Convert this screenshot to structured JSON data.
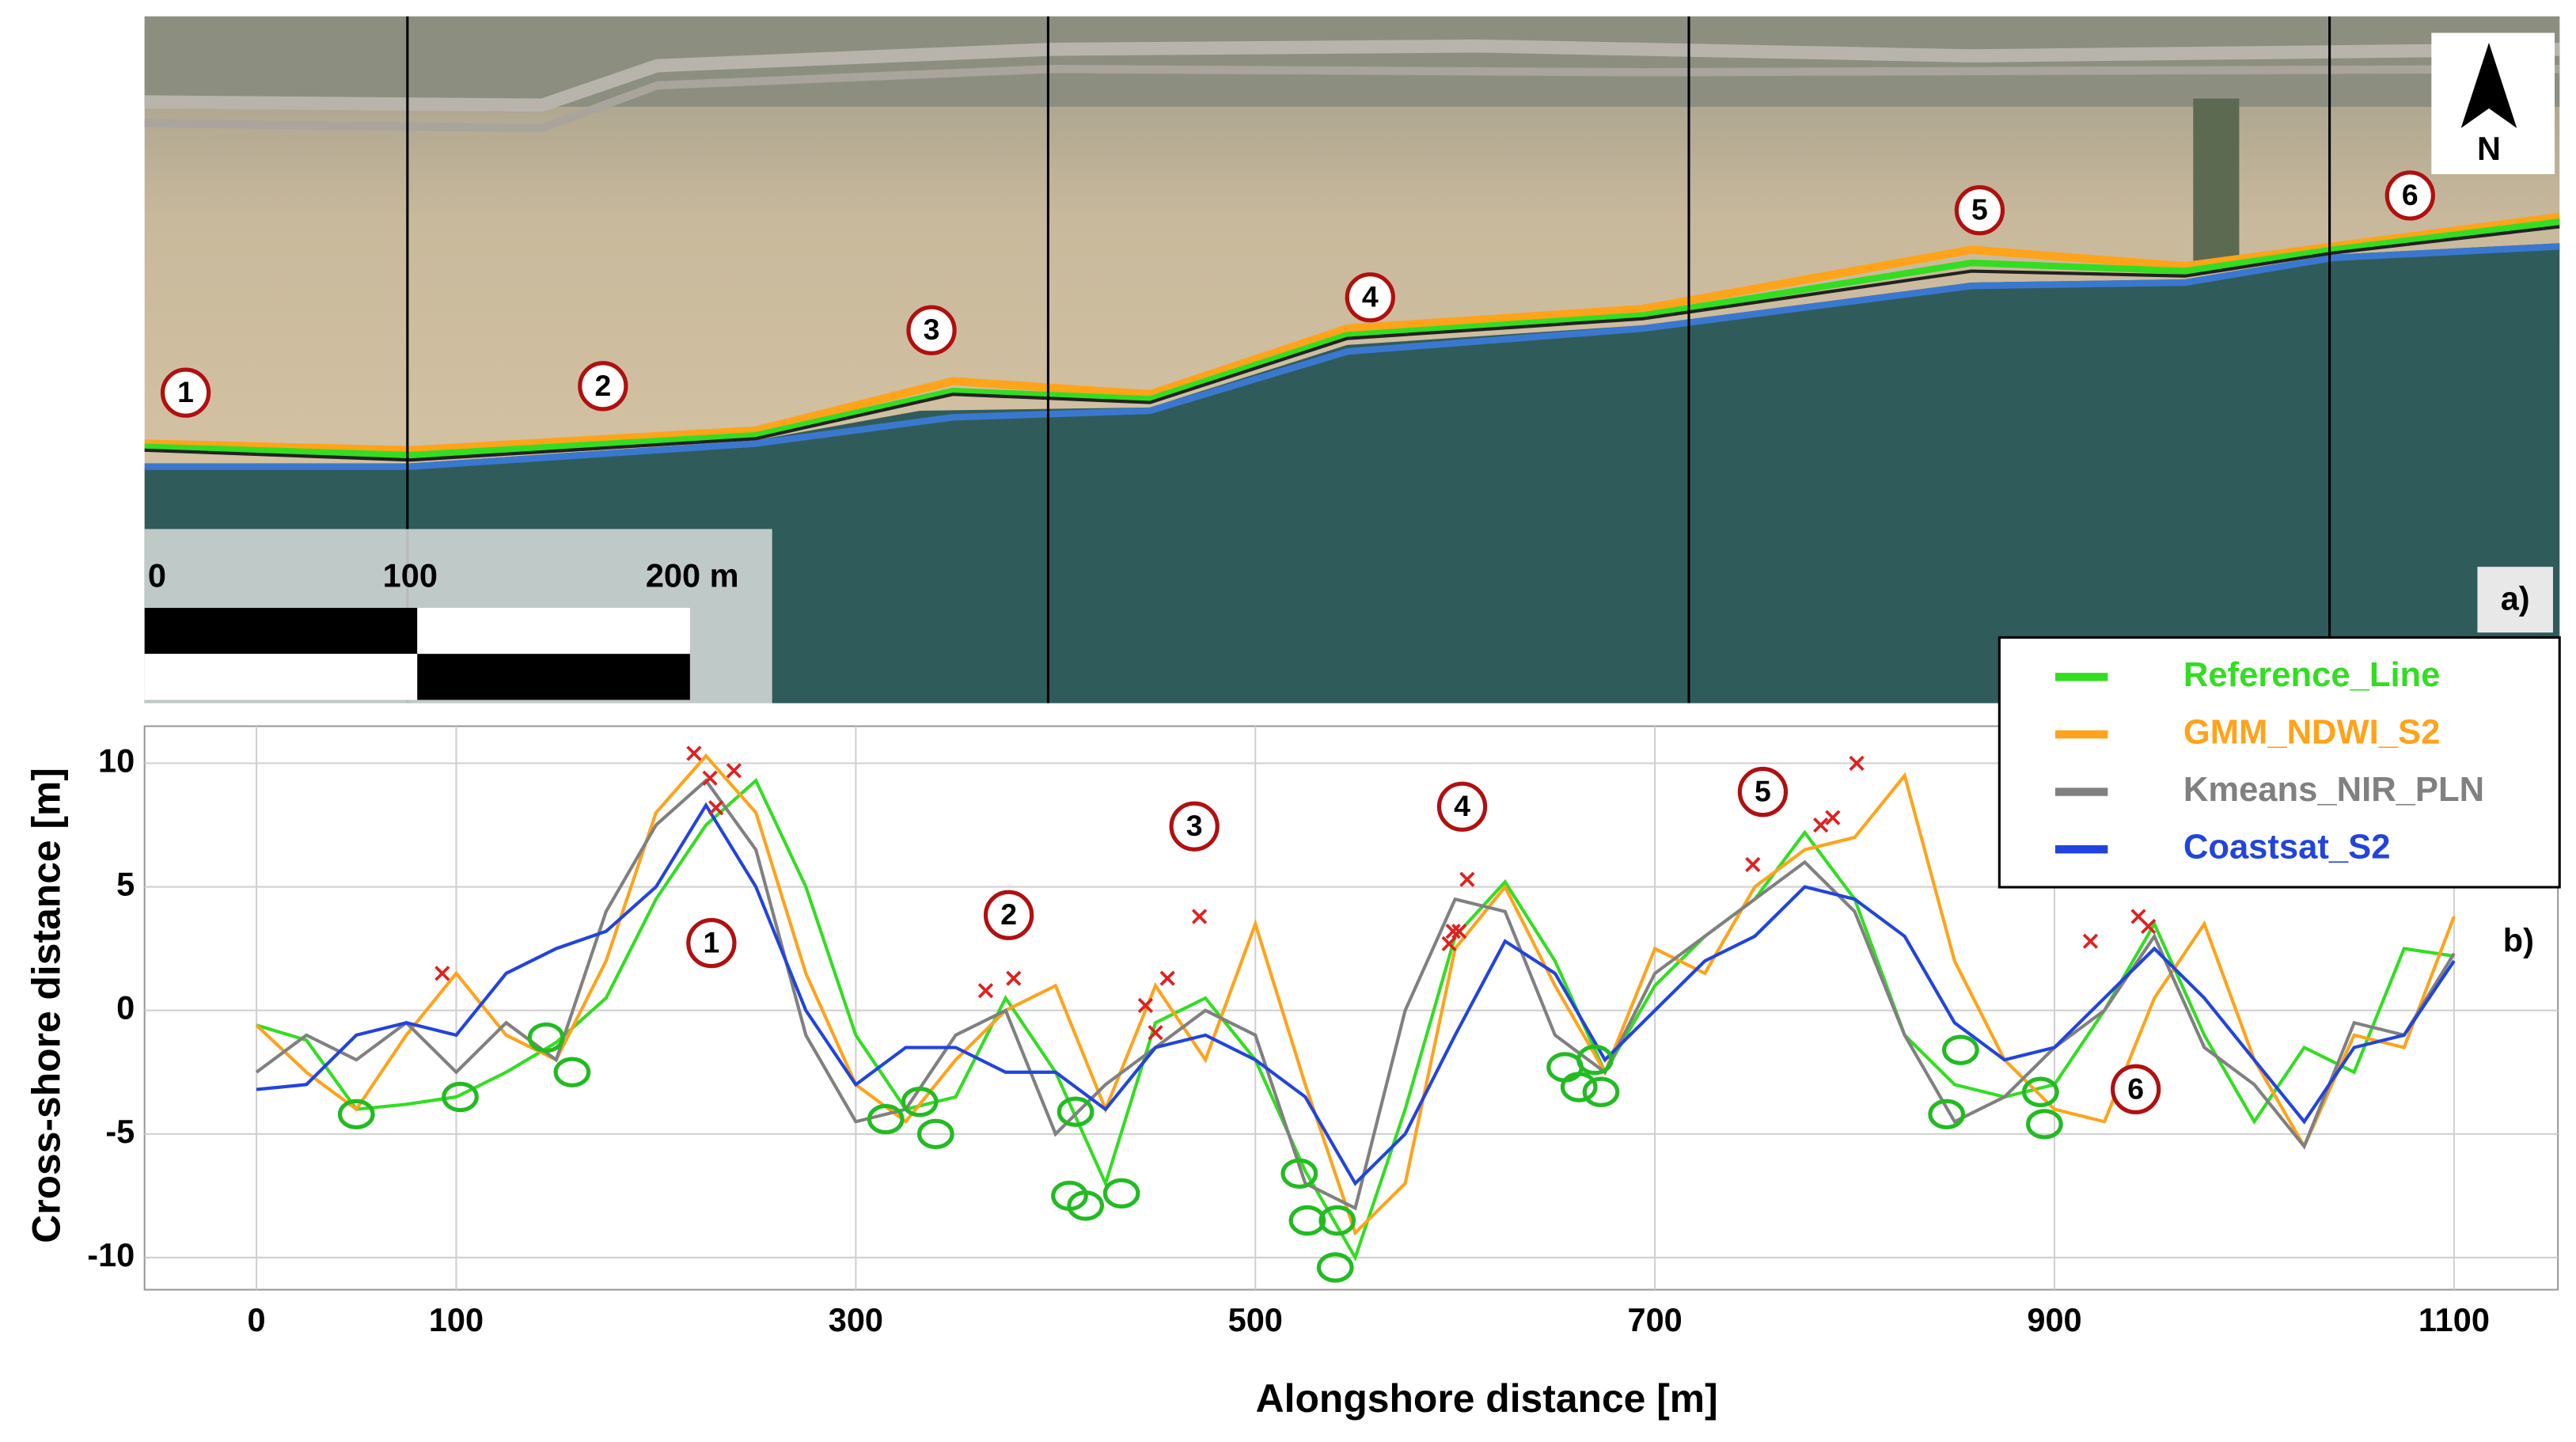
{
  "photo": {
    "labels": [
      "1",
      "2",
      "3",
      "4",
      "5",
      "6"
    ],
    "scale_labels": [
      "0",
      "100",
      "200 m"
    ],
    "north": "N",
    "panel": "a)"
  },
  "chart_data": {
    "type": "line",
    "panel": "b)",
    "x_label": "Alongshore distance [m]",
    "y_label": "Cross-shore distance [m]",
    "x": [
      0,
      25,
      50,
      75,
      100,
      125,
      150,
      175,
      200,
      225,
      250,
      275,
      300,
      325,
      350,
      375,
      400,
      425,
      450,
      475,
      500,
      525,
      550,
      575,
      600,
      625,
      650,
      675,
      700,
      725,
      750,
      775,
      800,
      825,
      850,
      875,
      900,
      925,
      950,
      975,
      1000,
      1025,
      1050,
      1075,
      1100
    ],
    "series": [
      {
        "name": "Reference_Line",
        "color": "#33dd22",
        "values": [
          -0.6,
          -1.2,
          -4,
          -3.8,
          -3.5,
          -2.5,
          -1.3,
          0.5,
          4.5,
          7.5,
          9.3,
          5,
          -1,
          -4,
          -3.5,
          0.5,
          -2.5,
          -7,
          -0.5,
          0.5,
          -2,
          -6.5,
          -10,
          -4,
          3,
          5.2,
          2,
          -2.5,
          1,
          3,
          4.5,
          7.2,
          4.5,
          -1,
          -3,
          -3.5,
          -3,
          0,
          3.5,
          -1,
          -4.5,
          -1.5,
          -2.5,
          2.5,
          2.2
        ]
      },
      {
        "name": "GMM_NDWI_S2",
        "color": "#ffa31a",
        "values": [
          -0.6,
          -2.5,
          -4,
          -1,
          1.5,
          -1,
          -2,
          2,
          8,
          10.3,
          8,
          1.5,
          -3,
          -4.5,
          -2,
          0,
          1,
          -4,
          1,
          -2,
          3.5,
          -3,
          -9,
          -7,
          2.5,
          5,
          1,
          -2.5,
          2.5,
          1.5,
          5,
          6.5,
          7,
          9.5,
          2,
          -2,
          -4,
          -4.5,
          0.5,
          3.5,
          -2,
          -5.5,
          -1,
          -1.5,
          3.8
        ]
      },
      {
        "name": "Kmeans_NIR_PLN",
        "color": "#808080",
        "values": [
          -2.5,
          -1,
          -2,
          -0.5,
          -2.5,
          -0.5,
          -2,
          4,
          7.5,
          9.3,
          6.5,
          -1,
          -4.5,
          -4,
          -1,
          0,
          -5,
          -3,
          -1.5,
          0,
          -1,
          -7,
          -8,
          0,
          4.5,
          4,
          -1,
          -2.5,
          1.5,
          3,
          4.5,
          6,
          4,
          -1,
          -4.5,
          -3.5,
          -1.5,
          0,
          3,
          -1.5,
          -3,
          -5.5,
          -0.5,
          -1,
          2.3
        ]
      },
      {
        "name": "Coastsat_S2",
        "color": "#2244dd",
        "values": [
          -3.2,
          -3,
          -1,
          -0.5,
          -1,
          1.5,
          2.5,
          3.2,
          5,
          8.3,
          5,
          0,
          -3,
          -1.5,
          -1.5,
          -2.5,
          -2.5,
          -4,
          -1.5,
          -1,
          -2,
          -3.5,
          -7,
          -5,
          -1,
          2.8,
          1.5,
          -2,
          0,
          2,
          3,
          5,
          4.5,
          3,
          -0.5,
          -2,
          -1.5,
          0.5,
          2.5,
          0.5,
          -2,
          -4.5,
          -1.5,
          -1,
          2
        ]
      }
    ],
    "error_points": {
      "color": "#e02020",
      "x": [
        219,
        227,
        239,
        230,
        93,
        365,
        379,
        445,
        450,
        456,
        472,
        597,
        599,
        602,
        606,
        749,
        783,
        789,
        801,
        918,
        942,
        947
      ],
      "y": [
        10.4,
        9.4,
        9.7,
        8.2,
        1.5,
        0.8,
        1.3,
        0.2,
        -0.9,
        1.3,
        3.8,
        2.7,
        3.2,
        3.2,
        5.3,
        5.9,
        7.5,
        7.8,
        10,
        2.8,
        3.8,
        3.4
      ]
    },
    "reference_points": {
      "color": "#22bb22",
      "x": [
        50,
        102,
        145,
        158,
        315,
        332,
        340,
        410,
        407,
        415,
        433,
        522,
        526,
        541,
        540,
        655,
        662,
        670,
        673,
        846,
        853,
        893,
        895
      ],
      "y": [
        -4.2,
        -3.5,
        -1.1,
        -2.5,
        -4.4,
        -3.7,
        -5,
        -4.1,
        -7.5,
        -7.9,
        -7.4,
        -6.6,
        -8.5,
        -8.5,
        -10.4,
        -2.3,
        -3.1,
        -2,
        -3.3,
        -4.2,
        -1.6,
        -3.3,
        -4.6
      ]
    },
    "annotations": [
      "1",
      "2",
      "3",
      "4",
      "5",
      "6"
    ],
    "xlim": [
      -56,
      1152
    ],
    "ylim": [
      -11.3,
      11.5
    ],
    "xticks": [
      0,
      100,
      300,
      500,
      700,
      900,
      1100
    ],
    "yticks": [
      -10,
      -5,
      0,
      5,
      10
    ],
    "grid": true,
    "legend": "top-right"
  }
}
